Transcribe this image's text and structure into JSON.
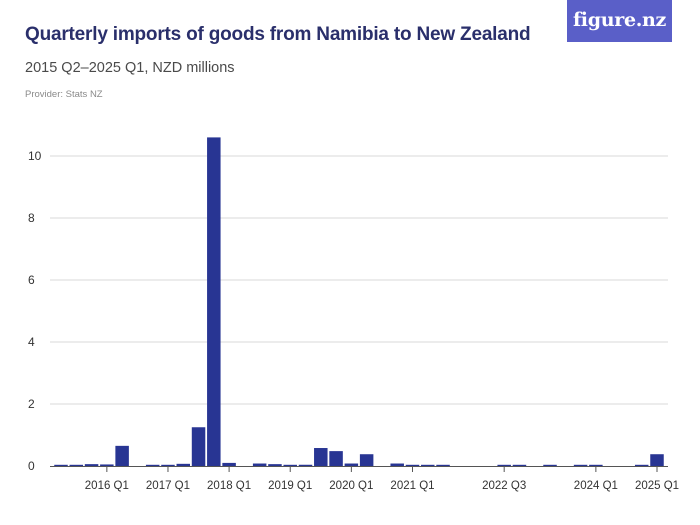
{
  "header": {
    "title": "Quarterly imports of goods from Namibia to New Zealand",
    "subtitle": "2015 Q2–2025 Q1, NZD millions",
    "provider": "Provider: Stats NZ",
    "logo": "figure.nz"
  },
  "colors": {
    "bar": "#283593",
    "grid": "#d9d9d9",
    "logo_bg": "#5a5fc8"
  },
  "chart_data": {
    "type": "bar",
    "title": "Quarterly imports of goods from Namibia to New Zealand",
    "subtitle": "2015 Q2–2025 Q1, NZD millions",
    "xlabel": "",
    "ylabel": "",
    "ylim": [
      0,
      10.6
    ],
    "y_ticks": [
      0,
      2,
      4,
      6,
      8,
      10
    ],
    "grid": true,
    "x_tick_labels": [
      {
        "label": "2016 Q1",
        "at": 3
      },
      {
        "label": "2017 Q1",
        "at": 7
      },
      {
        "label": "2018 Q1",
        "at": 11
      },
      {
        "label": "2019 Q1",
        "at": 15
      },
      {
        "label": "2020 Q1",
        "at": 19
      },
      {
        "label": "2021 Q1",
        "at": 23
      },
      {
        "label": "2022 Q3",
        "at": 29
      },
      {
        "label": "2024 Q1",
        "at": 35
      },
      {
        "label": "2025 Q1",
        "at": 39
      }
    ],
    "categories": [
      "2015 Q2",
      "2015 Q3",
      "2015 Q4",
      "2016 Q1",
      "2016 Q2",
      "2016 Q3",
      "2016 Q4",
      "2017 Q1",
      "2017 Q2",
      "2017 Q3",
      "2017 Q4",
      "2018 Q1",
      "2018 Q2",
      "2018 Q3",
      "2018 Q4",
      "2019 Q1",
      "2019 Q2",
      "2019 Q3",
      "2019 Q4",
      "2020 Q1",
      "2020 Q2",
      "2020 Q3",
      "2020 Q4",
      "2021 Q1",
      "2021 Q2",
      "2021 Q3",
      "2021 Q4",
      "2022 Q1",
      "2022 Q2",
      "2022 Q3",
      "2022 Q4",
      "2023 Q1",
      "2023 Q2",
      "2023 Q3",
      "2023 Q4",
      "2024 Q1",
      "2024 Q2",
      "2024 Q3",
      "2024 Q4",
      "2025 Q1"
    ],
    "values": [
      0.02,
      0.01,
      0.06,
      0.05,
      0.65,
      0,
      0.03,
      0.03,
      0.07,
      1.25,
      10.6,
      0.1,
      0,
      0.08,
      0.06,
      0.03,
      0.04,
      0.58,
      0.48,
      0.08,
      0.38,
      0,
      0.08,
      0.03,
      0.03,
      0.01,
      0,
      0,
      0,
      0.01,
      0.01,
      0,
      0.01,
      0,
      0.01,
      0.01,
      0,
      0,
      0.01,
      0.38
    ]
  }
}
